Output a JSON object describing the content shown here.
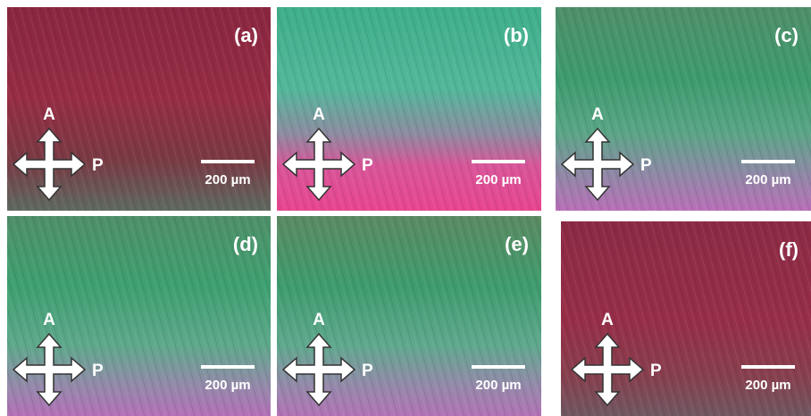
{
  "panels": [
    {
      "label": "(a)",
      "analyzer": "A",
      "polarizer": "P",
      "scale_bar": "200 µm"
    },
    {
      "label": "(b)",
      "analyzer": "A",
      "polarizer": "P",
      "scale_bar": "200 µm"
    },
    {
      "label": "(c)",
      "analyzer": "A",
      "polarizer": "P",
      "scale_bar": "200 µm"
    },
    {
      "label": "(d)",
      "analyzer": "A",
      "polarizer": "P",
      "scale_bar": "200 µm"
    },
    {
      "label": "(e)",
      "analyzer": "A",
      "polarizer": "P",
      "scale_bar": "200 µm"
    },
    {
      "label": "(f)",
      "analyzer": "A",
      "polarizer": "P",
      "scale_bar": "200 µm"
    }
  ]
}
